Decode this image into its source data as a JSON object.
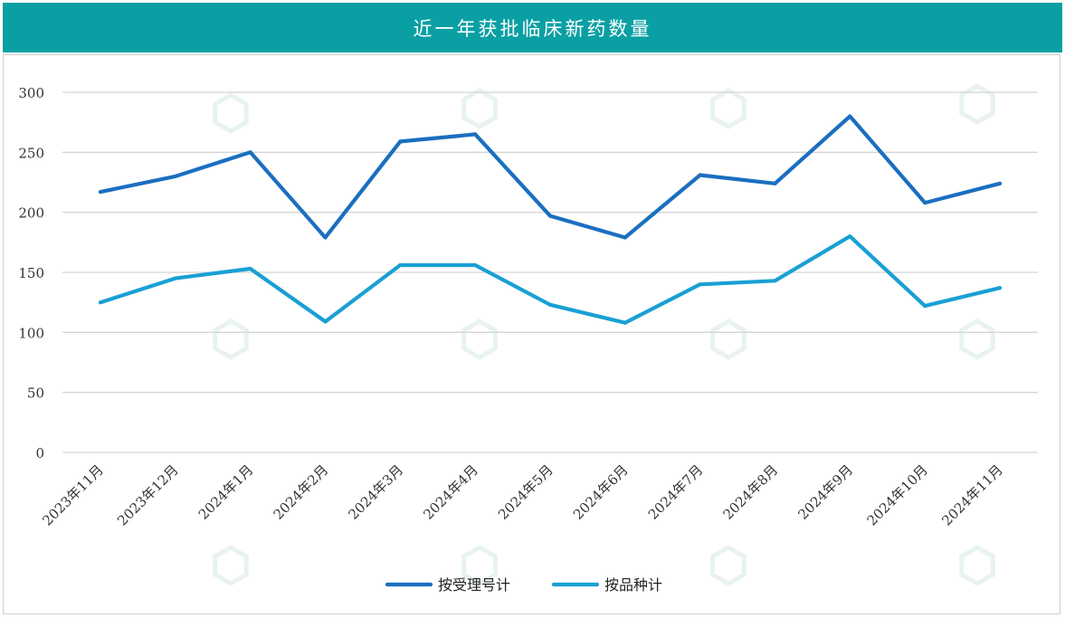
{
  "colors": {
    "header_bg": "#0aa0a3",
    "series_1": "#1a6fc0",
    "series_2": "#19a0d4",
    "grid": "#d4d4d4",
    "watermark": "#e8f3ef"
  },
  "chart_data": {
    "type": "line",
    "title": "近一年获批临床新药数量",
    "categories": [
      "2023年11月",
      "2023年12月",
      "2024年1月",
      "2024年2月",
      "2024年3月",
      "2024年4月",
      "2024年5月",
      "2024年6月",
      "2024年7月",
      "2024年8月",
      "2024年9月",
      "2024年10月",
      "2024年11月"
    ],
    "series": [
      {
        "name": "按受理号计",
        "values": [
          217,
          230,
          250,
          179,
          259,
          265,
          197,
          179,
          231,
          224,
          280,
          208,
          224
        ]
      },
      {
        "name": "按品种计",
        "values": [
          125,
          145,
          153,
          109,
          156,
          156,
          123,
          108,
          140,
          143,
          180,
          122,
          137
        ]
      }
    ],
    "ylim": [
      0,
      300
    ],
    "yticks": [
      0,
      50,
      100,
      150,
      200,
      250,
      300
    ],
    "grid": true,
    "legend": "bottom-center"
  }
}
